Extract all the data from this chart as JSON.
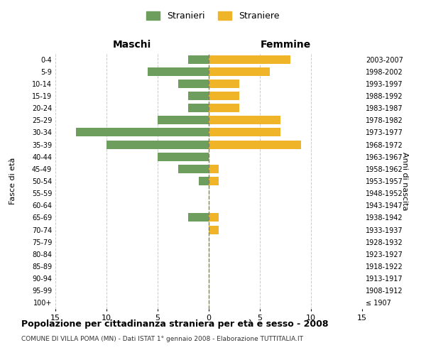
{
  "age_groups": [
    "100+",
    "95-99",
    "90-94",
    "85-89",
    "80-84",
    "75-79",
    "70-74",
    "65-69",
    "60-64",
    "55-59",
    "50-54",
    "45-49",
    "40-44",
    "35-39",
    "30-34",
    "25-29",
    "20-24",
    "15-19",
    "10-14",
    "5-9",
    "0-4"
  ],
  "birth_years": [
    "≤ 1907",
    "1908-1912",
    "1913-1917",
    "1918-1922",
    "1923-1927",
    "1928-1932",
    "1933-1937",
    "1938-1942",
    "1943-1947",
    "1948-1952",
    "1953-1957",
    "1958-1962",
    "1963-1967",
    "1968-1972",
    "1973-1977",
    "1978-1982",
    "1983-1987",
    "1988-1992",
    "1993-1997",
    "1998-2002",
    "2003-2007"
  ],
  "maschi": [
    0,
    0,
    0,
    0,
    0,
    0,
    0,
    2,
    0,
    0,
    1,
    3,
    5,
    10,
    13,
    5,
    2,
    2,
    3,
    6,
    2
  ],
  "femmine": [
    0,
    0,
    0,
    0,
    0,
    0,
    1,
    1,
    0,
    0,
    1,
    1,
    0,
    9,
    7,
    7,
    3,
    3,
    3,
    6,
    8
  ],
  "male_color": "#6d9e5e",
  "female_color": "#f0b429",
  "grid_color": "#cccccc",
  "center_line_color": "#808060",
  "title": "Popolazione per cittadinanza straniera per età e sesso - 2008",
  "subtitle": "COMUNE DI VILLA POMA (MN) - Dati ISTAT 1° gennaio 2008 - Elaborazione TUTTITALIA.IT",
  "xlabel_left": "Maschi",
  "xlabel_right": "Femmine",
  "ylabel_left": "Fasce di età",
  "ylabel_right": "Anni di nascita",
  "legend_stranieri": "Stranieri",
  "legend_straniere": "Straniere",
  "xlim": 15,
  "background_color": "#ffffff"
}
